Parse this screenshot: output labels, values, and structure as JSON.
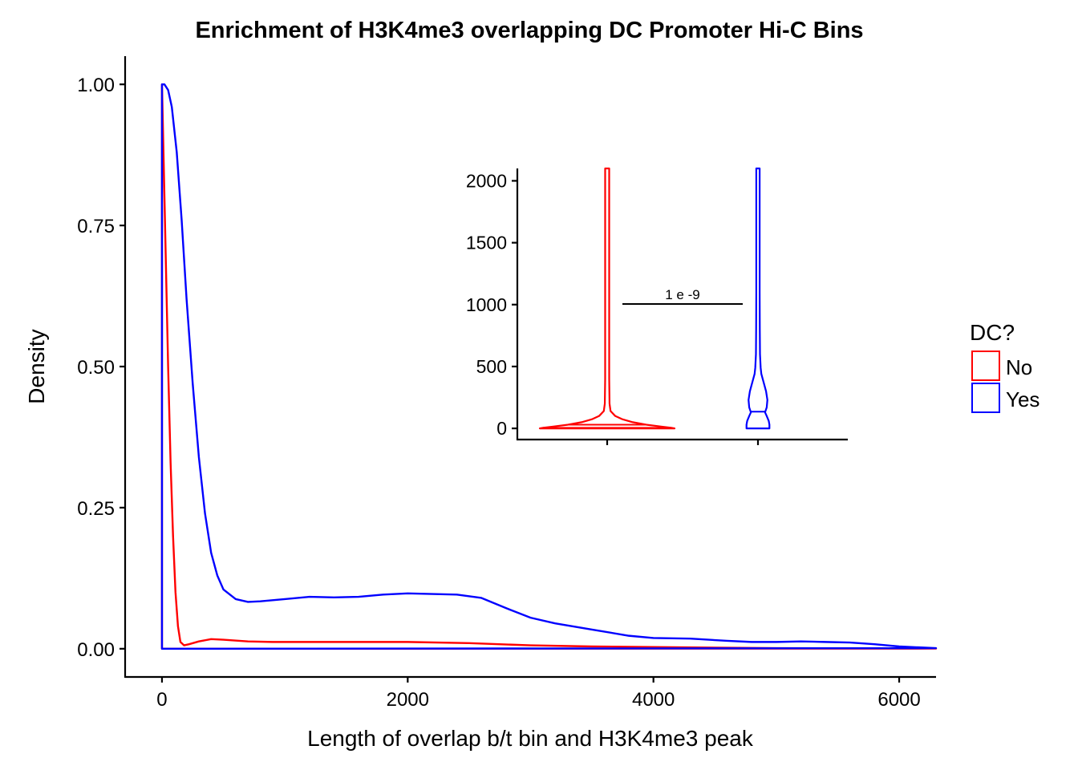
{
  "chart_data": [
    {
      "type": "line",
      "subtype": "density",
      "title": "Enrichment of H3K4me3 overlapping DC Promoter Hi-C Bins",
      "xlabel": "Length of overlap b/t bin and H3K4me3 peak",
      "ylabel": "Density",
      "xlim": [
        -300,
        6300
      ],
      "ylim": [
        -0.05,
        1.05
      ],
      "xticks": [
        "0",
        "2000",
        "4000",
        "6000"
      ],
      "yticks": [
        "0.00",
        "0.25",
        "0.50",
        "0.75",
        "1.00"
      ],
      "grid": false,
      "legend": {
        "title": "DC?",
        "position": "right",
        "entries": [
          "No",
          "Yes"
        ]
      },
      "series": [
        {
          "name": "No",
          "color": "#ff0000",
          "x": [
            0,
            0,
            10,
            30,
            50,
            70,
            90,
            110,
            130,
            150,
            180,
            220,
            300,
            400,
            500,
            700,
            900,
            1100,
            1500,
            2000,
            2500,
            3000,
            3500,
            4000,
            5000,
            6000,
            6300
          ],
          "y": [
            0,
            1.0,
            0.9,
            0.7,
            0.5,
            0.33,
            0.2,
            0.1,
            0.04,
            0.012,
            0.006,
            0.008,
            0.013,
            0.017,
            0.016,
            0.013,
            0.012,
            0.012,
            0.012,
            0.012,
            0.01,
            0.006,
            0.004,
            0.003,
            0.001,
            0.0005,
            0.0003
          ]
        },
        {
          "name": "Yes",
          "color": "#0000ff",
          "x": [
            0,
            0,
            20,
            50,
            80,
            120,
            160,
            200,
            250,
            300,
            350,
            400,
            450,
            500,
            600,
            700,
            800,
            1000,
            1200,
            1400,
            1600,
            1800,
            2000,
            2200,
            2400,
            2600,
            2800,
            3000,
            3200,
            3500,
            3800,
            4000,
            4300,
            4600,
            4800,
            5000,
            5200,
            5400,
            5600,
            5800,
            6000,
            6300
          ],
          "y": [
            0,
            1.0,
            1.0,
            0.99,
            0.96,
            0.88,
            0.76,
            0.62,
            0.47,
            0.34,
            0.24,
            0.17,
            0.13,
            0.105,
            0.088,
            0.083,
            0.084,
            0.088,
            0.092,
            0.091,
            0.092,
            0.096,
            0.098,
            0.097,
            0.096,
            0.09,
            0.072,
            0.055,
            0.045,
            0.034,
            0.023,
            0.019,
            0.018,
            0.014,
            0.012,
            0.012,
            0.013,
            0.012,
            0.011,
            0.008,
            0.004,
            0.001
          ]
        }
      ]
    },
    {
      "type": "violin",
      "title": "",
      "xlabel": "",
      "ylabel": "",
      "ylim": [
        -90,
        2100
      ],
      "yticks": [
        "0",
        "500",
        "1000",
        "1500",
        "2000"
      ],
      "categories": [
        "No",
        "Yes"
      ],
      "annotation": {
        "text": "1 e -9",
        "y": 1000
      },
      "series": [
        {
          "name": "No",
          "color": "#ff0000",
          "y": [
            0,
            5,
            15,
            30,
            50,
            75,
            100,
            140,
            200,
            400,
            800,
            1500,
            2100
          ],
          "halfwidth": [
            1.0,
            0.95,
            0.8,
            0.58,
            0.38,
            0.22,
            0.12,
            0.05,
            0.035,
            0.03,
            0.03,
            0.03,
            0.03
          ],
          "median": 5,
          "quartiles": [
            1,
            30
          ]
        },
        {
          "name": "Yes",
          "color": "#0000ff",
          "y": [
            0,
            30,
            60,
            100,
            130,
            170,
            230,
            300,
            380,
            440,
            490,
            600,
            800,
            1100,
            1500,
            2100
          ],
          "halfwidth": [
            0.17,
            0.17,
            0.16,
            0.13,
            0.105,
            0.13,
            0.14,
            0.12,
            0.08,
            0.05,
            0.04,
            0.03,
            0.027,
            0.025,
            0.025,
            0.025
          ],
          "median": 135,
          "quartiles": []
        }
      ]
    }
  ]
}
